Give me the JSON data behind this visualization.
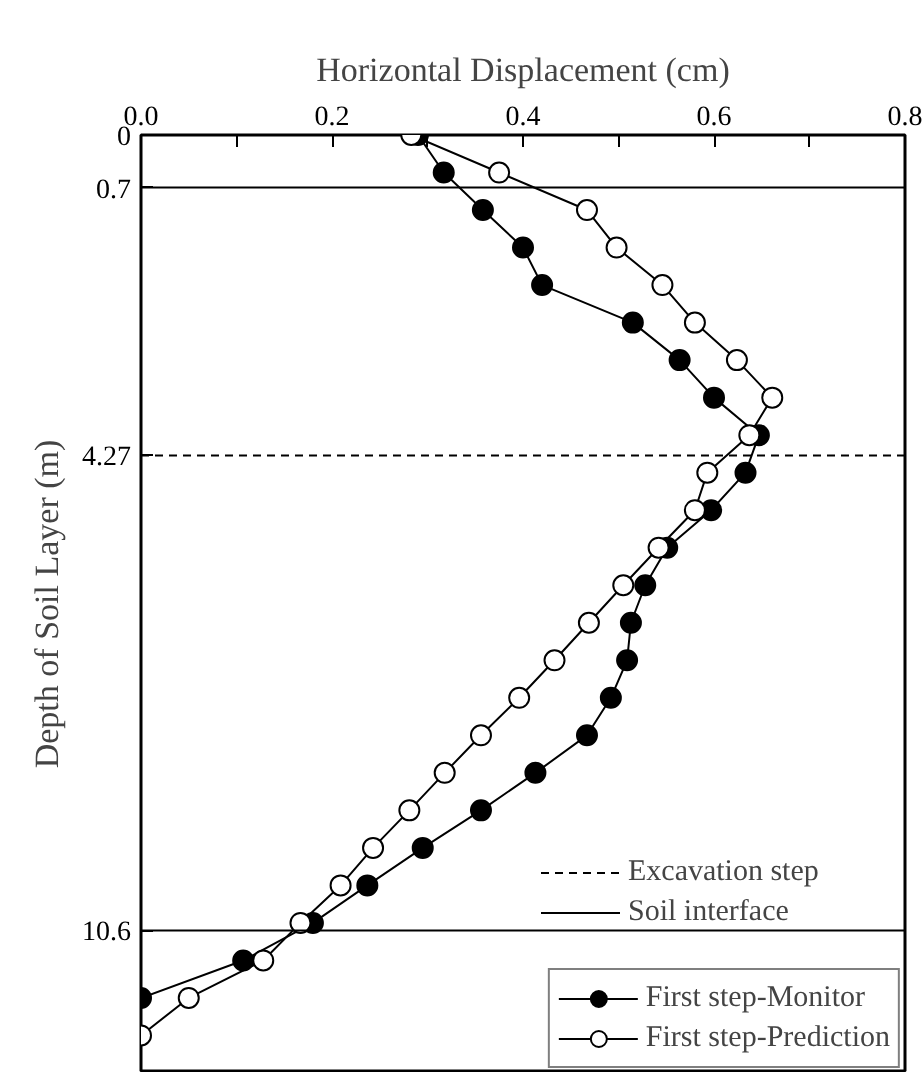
{
  "chart_data": {
    "type": "line",
    "xlabel": "Horizontal Displacement (cm)",
    "ylabel": "Depth of Soil Layer (m)",
    "xlim": [
      0,
      0.8
    ],
    "xticks": [
      {
        "value": 0,
        "label": "0.0"
      },
      {
        "value": 0.1,
        "label": null
      },
      {
        "value": 0.2,
        "label": "0.2"
      },
      {
        "value": 0.3,
        "label": null
      },
      {
        "value": 0.4,
        "label": "0.4"
      },
      {
        "value": 0.5,
        "label": null
      },
      {
        "value": 0.6,
        "label": "0.6"
      },
      {
        "value": 0.7,
        "label": null
      },
      {
        "value": 0.8,
        "label": "0.8"
      }
    ],
    "ylim": [
      12.5,
      0
    ],
    "yticks": [
      0,
      0.7,
      4.27,
      10.6
    ],
    "marker": "circle",
    "line_style": "solid",
    "grid": false,
    "legend": "bottom right",
    "series": [
      {
        "name": "First step-Monitor",
        "color": "#000000",
        "x": [
          0.29,
          0.317,
          0.358,
          0.4,
          0.42,
          0.515,
          0.564,
          0.6,
          0.647,
          0.633,
          0.597,
          0.551,
          0.528,
          0.513,
          0.509,
          0.492,
          0.467,
          0.413,
          0.356,
          0.295,
          0.237,
          0.18,
          0.107,
          0.0
        ],
        "values": [
          0,
          0.5,
          1.0,
          1.5,
          2.0,
          2.5,
          3.0,
          3.5,
          4.0,
          4.5,
          5.0,
          5.5,
          6.0,
          6.5,
          7.0,
          7.5,
          8.0,
          8.5,
          9.0,
          9.5,
          10.0,
          10.5,
          11.0,
          11.5
        ]
      },
      {
        "name": "First step-Prediction",
        "color": "#ffffff",
        "x": [
          0.283,
          0.375,
          0.467,
          0.498,
          0.546,
          0.58,
          0.624,
          0.661,
          0.637,
          0.593,
          0.58,
          0.542,
          0.505,
          0.469,
          0.433,
          0.396,
          0.356,
          0.318,
          0.281,
          0.243,
          0.209,
          0.167,
          0.128,
          0.05,
          0.0
        ],
        "values": [
          0,
          0.5,
          1.0,
          1.5,
          2.0,
          2.5,
          3.0,
          3.5,
          4.0,
          4.5,
          5.0,
          5.5,
          6.0,
          6.5,
          7.0,
          7.5,
          8.0,
          8.5,
          9.0,
          9.5,
          10.0,
          10.5,
          11.0,
          11.5,
          12.0
        ]
      }
    ],
    "ref_lines": [
      {
        "axis": "y",
        "value": 4.27,
        "label": "Excavation step",
        "line_style": "dashed",
        "color": "#000000"
      },
      {
        "axis": "y",
        "value": 0.7,
        "label": "Soil interface",
        "line_style": "solid",
        "color": "#000000"
      },
      {
        "axis": "y",
        "value": 10.6,
        "line_style": "solid",
        "color": "#000000"
      }
    ]
  }
}
